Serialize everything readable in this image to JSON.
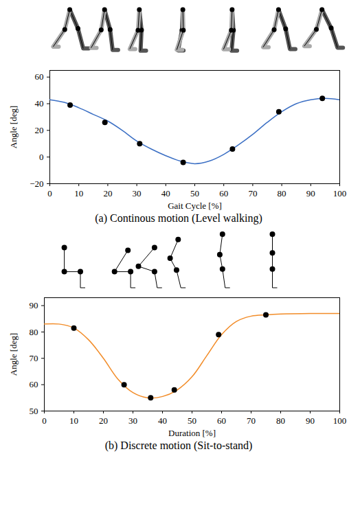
{
  "chart_data": [
    {
      "type": "line",
      "title": "(a) Continous motion (Level walking)",
      "x_label": "Gait Cycle [%]",
      "y_label": "Angle [deg]",
      "x": [
        0,
        5,
        10,
        15,
        20,
        25,
        30,
        35,
        40,
        45,
        50,
        55,
        60,
        65,
        70,
        75,
        80,
        85,
        90,
        95,
        100
      ],
      "values": [
        43,
        41,
        37,
        32,
        27,
        20,
        12,
        6,
        1,
        -3,
        -5,
        -3,
        2,
        9,
        17,
        26,
        34,
        40,
        43,
        44,
        43
      ],
      "points": {
        "x": [
          7,
          19,
          31,
          46,
          63,
          79,
          94
        ],
        "values": [
          39,
          26,
          10,
          -4,
          6,
          34,
          44
        ]
      },
      "color": "#3b6fc4",
      "marker": "circle",
      "xlim": [
        0,
        100
      ],
      "xticks": [
        0,
        10,
        20,
        30,
        40,
        50,
        60,
        70,
        80,
        90,
        100
      ],
      "ylim": [
        -20,
        65
      ],
      "yticks": [
        -20,
        0,
        20,
        40,
        60
      ],
      "grid": false
    },
    {
      "type": "line",
      "title": "(b) Discrete motion (Sit-to-stand)",
      "x_label": "Duration [%]",
      "y_label": "Angle [deg]",
      "x": [
        0,
        5,
        10,
        15,
        20,
        25,
        30,
        35,
        40,
        45,
        50,
        55,
        60,
        65,
        70,
        75,
        80,
        90,
        100
      ],
      "values": [
        83,
        83,
        81.5,
        77,
        70,
        62,
        57,
        55,
        55.5,
        58,
        63,
        71,
        79,
        84,
        86,
        86.5,
        86.8,
        87,
        87
      ],
      "points": {
        "x": [
          10,
          27,
          36,
          44,
          59,
          75
        ],
        "values": [
          81.5,
          60,
          55,
          58,
          79,
          86.5
        ]
      },
      "color": "#f28c28",
      "marker": "circle",
      "xlim": [
        0,
        100
      ],
      "xticks": [
        0,
        10,
        20,
        30,
        40,
        50,
        60,
        70,
        80,
        90,
        100
      ],
      "ylim": [
        50,
        93
      ],
      "yticks": [
        50,
        60,
        70,
        80,
        90
      ],
      "grid": false
    }
  ]
}
